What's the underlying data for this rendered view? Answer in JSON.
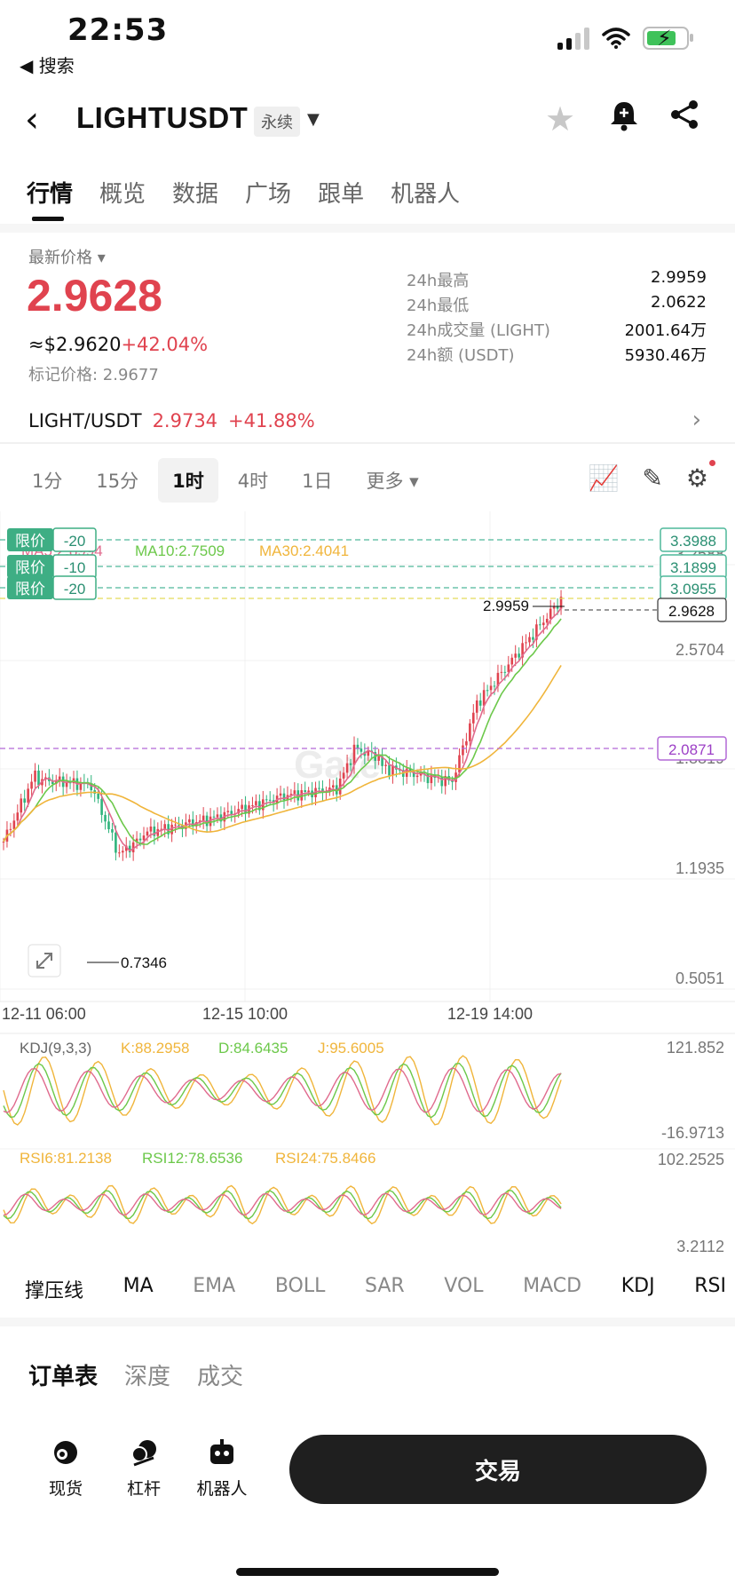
{
  "status": {
    "time": "22:53",
    "back_app": "◀ 搜索"
  },
  "header": {
    "symbol": "LIGHTUSDT",
    "badge": "永续"
  },
  "tabs": [
    "行情",
    "概览",
    "数据",
    "广场",
    "跟单",
    "机器人"
  ],
  "price": {
    "label": "最新价格",
    "last": "2.9628",
    "usd": "≈$2.9620",
    "change": "+42.04%",
    "mark": "标记价格: 2.9677"
  },
  "stats": [
    {
      "k": "24h最高",
      "v": "2.9959"
    },
    {
      "k": "24h最低",
      "v": "2.0622"
    },
    {
      "k": "24h成交量 (LIGHT)",
      "v": "2001.64万"
    },
    {
      "k": "24h额 (USDT)",
      "v": "5930.46万"
    }
  ],
  "pair": {
    "name": "LIGHT/USDT",
    "price": "2.9734",
    "change": "+41.88%"
  },
  "timeframes": [
    "1分",
    "15分",
    "1时",
    "4时",
    "1日",
    "更多"
  ],
  "chart": {
    "ma_legend": {
      "ma5": "MA5:2.8994",
      "ma10": "MA10:2.7509",
      "ma30": "MA30:2.4041"
    },
    "limit_tags": [
      {
        "label": "限价",
        "qty": "-20"
      },
      {
        "label": "限价",
        "qty": "-10"
      },
      {
        "label": "限价",
        "qty": "-20"
      }
    ],
    "price_boxes": [
      "3.3988",
      "3.1899",
      "3.0955",
      "2.9628",
      "2.0871"
    ],
    "y_ticks": [
      "3.2588",
      "2.5704",
      "1.8819",
      "1.1935",
      "0.5051"
    ],
    "x_ticks": [
      "12-11 06:00",
      "12-15 10:00",
      "12-19 14:00"
    ],
    "high_label": "2.9959",
    "low_label": "0.7346",
    "watermark": "Gate",
    "kdj": {
      "title": "KDJ(9,3,3)",
      "k": "K:88.2958",
      "d": "D:84.6435",
      "j": "J:95.6005",
      "max": "121.852",
      "min": "-16.9713"
    },
    "rsi": {
      "r6": "RSI6:81.2138",
      "r12": "RSI12:78.6536",
      "r24": "RSI24:75.8466",
      "max": "102.2525",
      "min": "3.2112"
    }
  },
  "chart_data": {
    "type": "candlestick",
    "x": [
      "12-11 06:00",
      "12-15 10:00",
      "12-19 14:00"
    ],
    "ylim": [
      0.5051,
      3.3988
    ],
    "high": 2.9959,
    "low": 0.7346,
    "last": 2.9628
  },
  "indicators": [
    "撑压线",
    "MA",
    "EMA",
    "BOLL",
    "SAR",
    "VOL",
    "MACD",
    "KDJ",
    "RSI"
  ],
  "indicators_on": [
    true,
    true,
    false,
    false,
    false,
    false,
    false,
    true,
    true
  ],
  "book_tabs": [
    "订单表",
    "深度",
    "成交"
  ],
  "bottom_nav": [
    "现货",
    "杠杆",
    "机器人"
  ],
  "trade_button": "交易"
}
